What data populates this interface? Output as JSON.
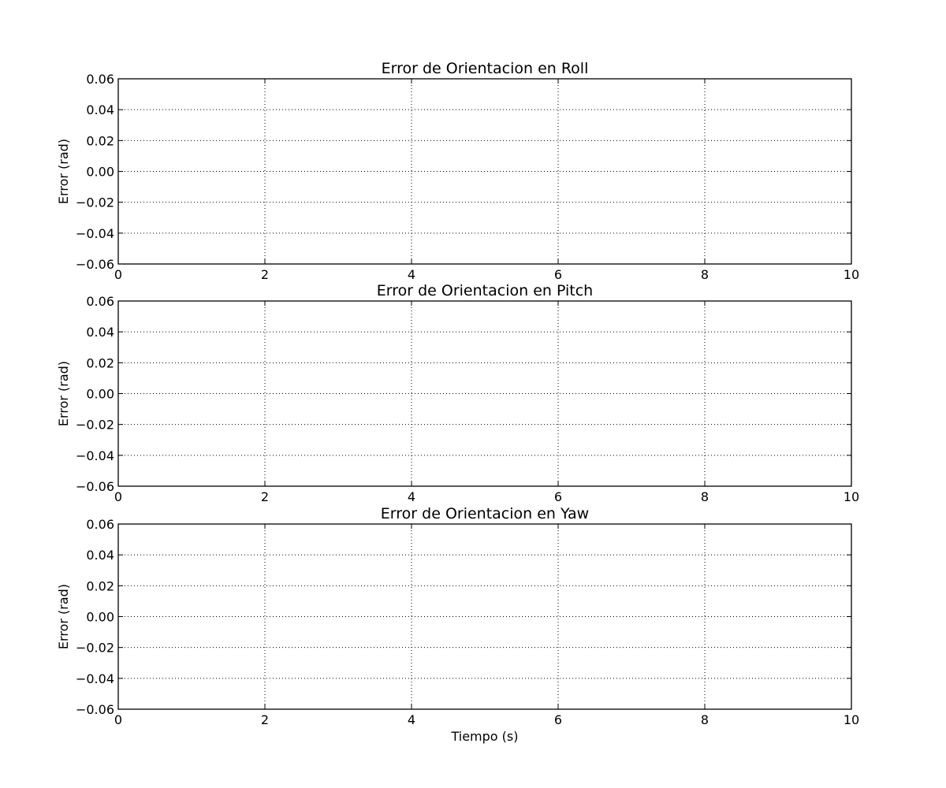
{
  "chart_data": [
    {
      "type": "line",
      "title": "Error de Orientacion en Roll",
      "xlabel": "",
      "ylabel": "Error (rad)",
      "xlim": [
        0,
        10
      ],
      "ylim": [
        -0.06,
        0.06
      ],
      "x_ticks": [
        "0",
        "2",
        "4",
        "6",
        "8",
        "10"
      ],
      "y_ticks": [
        "0.06",
        "0.04",
        "0.02",
        "0.00",
        "−0.02",
        "−0.04",
        "−0.06"
      ],
      "grid": true,
      "series": []
    },
    {
      "type": "line",
      "title": "Error de Orientacion en Pitch",
      "xlabel": "",
      "ylabel": "Error (rad)",
      "xlim": [
        0,
        10
      ],
      "ylim": [
        -0.06,
        0.06
      ],
      "x_ticks": [
        "0",
        "2",
        "4",
        "6",
        "8",
        "10"
      ],
      "y_ticks": [
        "0.06",
        "0.04",
        "0.02",
        "0.00",
        "−0.02",
        "−0.04",
        "−0.06"
      ],
      "grid": true,
      "series": []
    },
    {
      "type": "line",
      "title": "Error de Orientacion en Yaw",
      "xlabel": "Tiempo (s)",
      "ylabel": "Error (rad)",
      "xlim": [
        0,
        10
      ],
      "ylim": [
        -0.06,
        0.06
      ],
      "x_ticks": [
        "0",
        "2",
        "4",
        "6",
        "8",
        "10"
      ],
      "y_ticks": [
        "0.06",
        "0.04",
        "0.02",
        "0.00",
        "−0.02",
        "−0.04",
        "−0.06"
      ],
      "grid": true,
      "series": []
    }
  ]
}
